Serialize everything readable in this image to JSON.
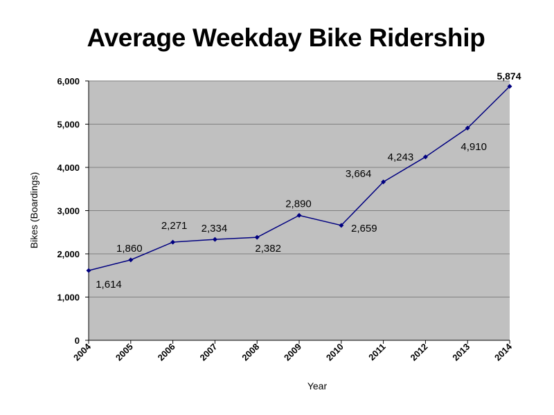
{
  "chart_data": {
    "type": "line",
    "title": "Average Weekday Bike Ridership",
    "xlabel": "Year",
    "ylabel": "Bikes (Boardings)",
    "categories": [
      "2004",
      "2005",
      "2006",
      "2007",
      "2008",
      "2009",
      "2010",
      "2011",
      "2012",
      "2013",
      "2014"
    ],
    "values": [
      1614,
      1860,
      2271,
      2334,
      2382,
      2890,
      2659,
      3664,
      4243,
      4910,
      5874
    ],
    "data_labels": [
      "1,614",
      "1,860",
      "2,271",
      "2,334",
      "2,382",
      "2,890",
      "2,659",
      "3,664",
      "4,243",
      "4,910",
      "5,874"
    ],
    "ylim": [
      0,
      6000
    ],
    "yticks": [
      0,
      1000,
      2000,
      3000,
      4000,
      5000,
      6000
    ],
    "ytick_labels": [
      "0",
      "1,000",
      "2,000",
      "3,000",
      "4,000",
      "5,000",
      "6,000"
    ],
    "grid": true,
    "legend": "none",
    "colors": {
      "line": "#000080",
      "marker": "#000080",
      "plot_background": "#c0c0c0",
      "gridline": "#7f7f7f"
    }
  }
}
